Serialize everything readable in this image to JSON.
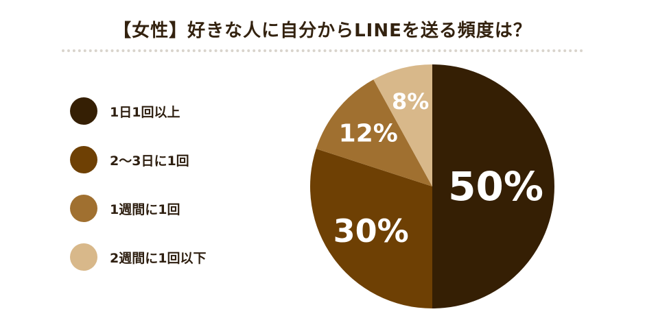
{
  "title": "【女性】好きな人に自分からLINEを送る頻度は？",
  "chart_data": {
    "type": "pie",
    "title": "【女性】好きな人に自分からLINEを送る頻度は？",
    "categories": [
      "1日1回以上",
      "2〜3日に1回",
      "1週間に1回",
      "2週間に1回以下"
    ],
    "values": [
      50,
      30,
      12,
      8
    ],
    "value_labels": [
      "50%",
      "30%",
      "12%",
      "8%"
    ],
    "colors": [
      "#351f04",
      "#6e4004",
      "#a07030",
      "#d8b88a"
    ],
    "legend_position": "left",
    "start_angle": "12 o'clock",
    "direction": "clockwise"
  }
}
